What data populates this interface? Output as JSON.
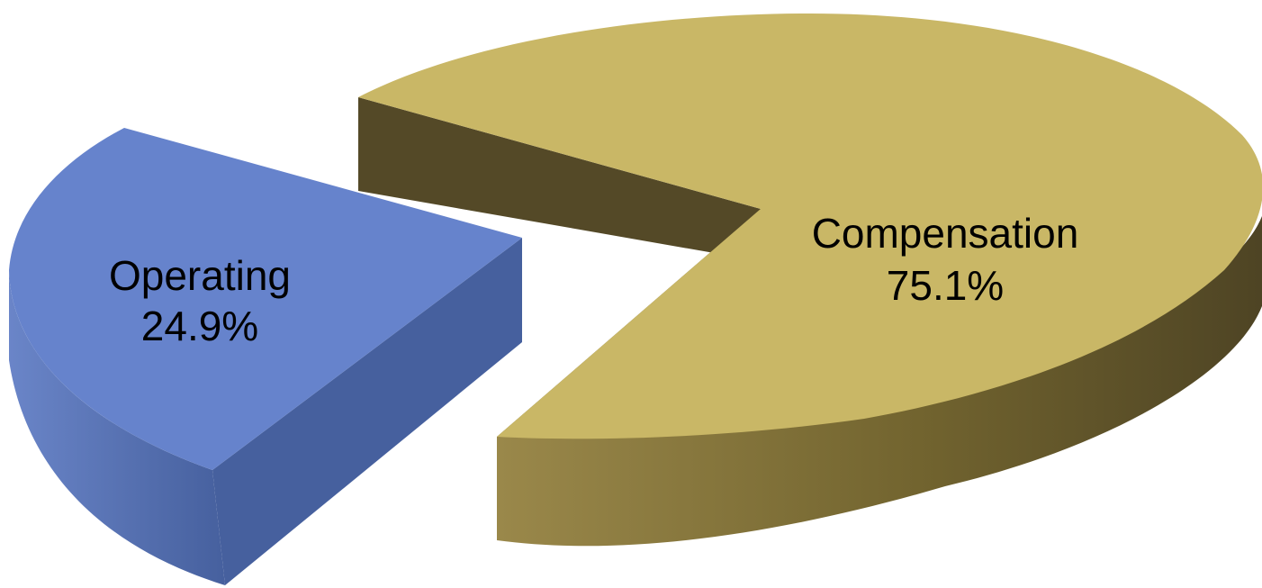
{
  "chart_data": {
    "type": "pie",
    "style": "3d-exploded",
    "slices": [
      {
        "label": "Compensation",
        "value": 75.1,
        "value_label": "75.1%",
        "color": "#C9B766"
      },
      {
        "label": "Operating",
        "value": 24.9,
        "value_label": "24.9%",
        "color": "#6683CC"
      }
    ]
  }
}
